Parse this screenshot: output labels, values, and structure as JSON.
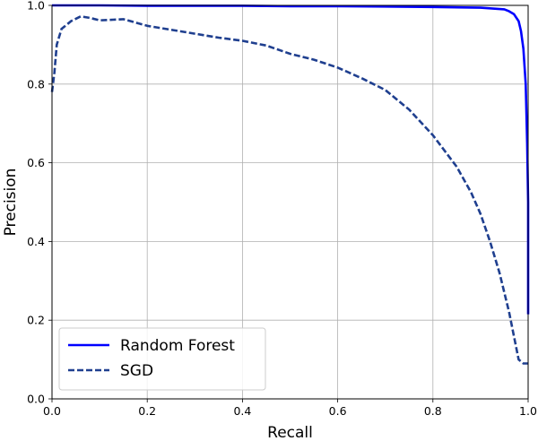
{
  "chart_data": {
    "type": "line",
    "xlabel": "Recall",
    "ylabel": "Precision",
    "xlim": [
      0,
      1
    ],
    "ylim": [
      0,
      1
    ],
    "xticks": [
      "0.0",
      "0.2",
      "0.4",
      "0.6",
      "0.8",
      "1.0"
    ],
    "yticks": [
      "0.0",
      "0.2",
      "0.4",
      "0.6",
      "0.8",
      "1.0"
    ],
    "grid": true,
    "legend_position": "bottom-left",
    "series": [
      {
        "name": "Random Forest",
        "color": "#0000ff",
        "linestyle": "solid",
        "x": [
          1.0,
          1.0,
          0.998,
          0.995,
          0.99,
          0.985,
          0.98,
          0.97,
          0.96,
          0.95,
          0.9,
          0.8,
          0.7,
          0.6,
          0.5,
          0.4,
          0.3,
          0.2,
          0.1,
          0.0
        ],
        "y": [
          0.215,
          0.5,
          0.65,
          0.8,
          0.89,
          0.935,
          0.96,
          0.978,
          0.985,
          0.99,
          0.994,
          0.996,
          0.997,
          0.998,
          0.998,
          0.999,
          0.999,
          0.999,
          1.0,
          1.0
        ]
      },
      {
        "name": "SGD",
        "color": "#1f3f8f",
        "linestyle": "dashed",
        "x": [
          0.0,
          0.002,
          0.005,
          0.01,
          0.02,
          0.04,
          0.06,
          0.08,
          0.1,
          0.15,
          0.2,
          0.25,
          0.3,
          0.35,
          0.4,
          0.45,
          0.5,
          0.55,
          0.6,
          0.65,
          0.7,
          0.75,
          0.8,
          0.85,
          0.88,
          0.9,
          0.92,
          0.94,
          0.96,
          0.97,
          0.98,
          0.99,
          1.0
        ],
        "y": [
          0.78,
          0.8,
          0.83,
          0.9,
          0.94,
          0.96,
          0.972,
          0.968,
          0.962,
          0.965,
          0.948,
          0.938,
          0.928,
          0.918,
          0.91,
          0.898,
          0.877,
          0.862,
          0.842,
          0.815,
          0.785,
          0.735,
          0.67,
          0.59,
          0.525,
          0.47,
          0.4,
          0.32,
          0.22,
          0.16,
          0.1,
          0.09,
          0.09
        ]
      }
    ]
  }
}
